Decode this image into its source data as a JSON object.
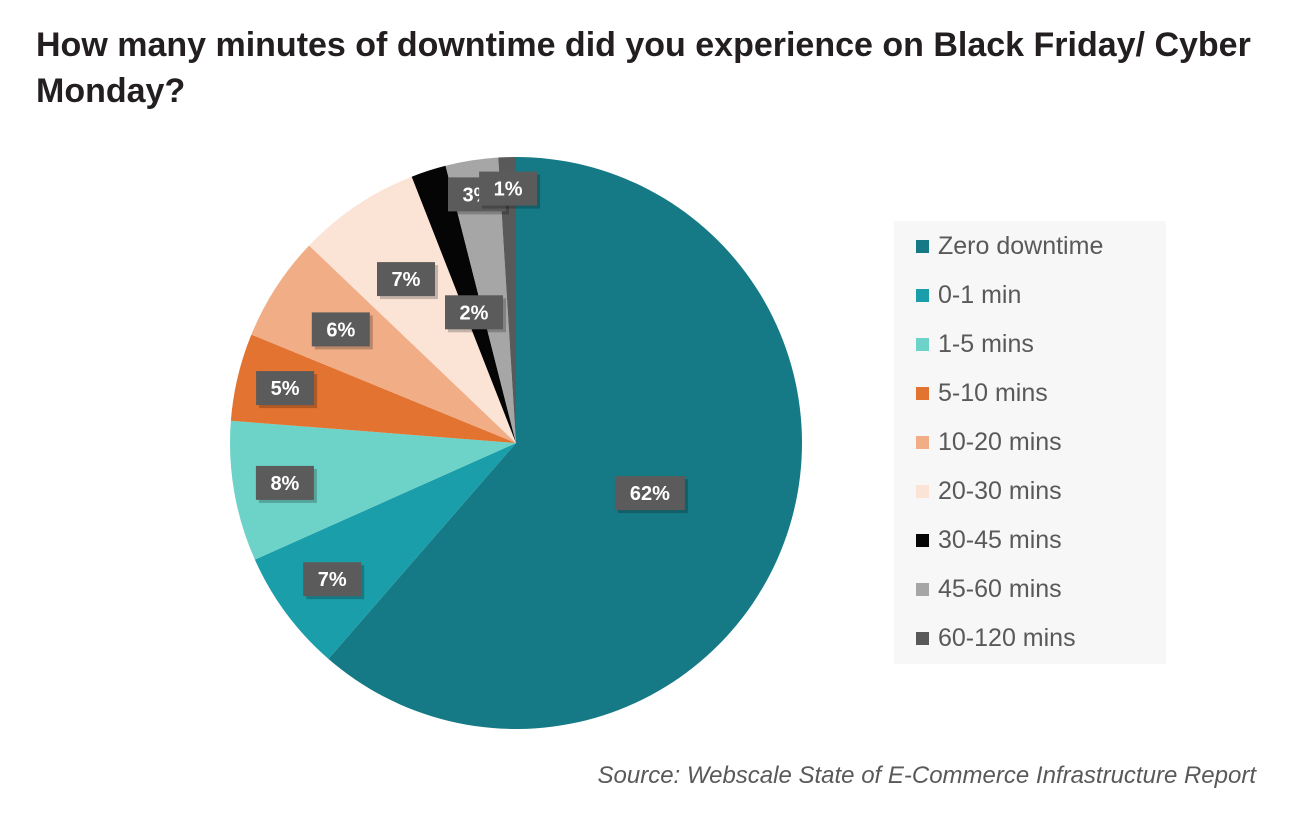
{
  "title": "How many minutes of downtime did you experience on Black Friday/ Cyber Monday?",
  "source": "Source: Webscale State of E-Commerce Infrastructure Report",
  "chart_data": {
    "type": "pie",
    "title": "How many minutes of downtime did you experience on Black Friday/ Cyber Monday?",
    "start": "12 o'clock",
    "direction": "clockwise",
    "legend_position": "right",
    "data_label_style": "dark-box",
    "slices": [
      {
        "label": "Zero downtime",
        "value": 62,
        "display": "62%",
        "color": "#167a86"
      },
      {
        "label": "0-1 min",
        "value": 7,
        "display": "7%",
        "color": "#1a9ea9"
      },
      {
        "label": "1-5 mins",
        "value": 8,
        "display": "8%",
        "color": "#6dd3c8"
      },
      {
        "label": "5-10 mins",
        "value": 5,
        "display": "5%",
        "color": "#e27330"
      },
      {
        "label": "10-20 mins",
        "value": 6,
        "display": "6%",
        "color": "#f0ad86"
      },
      {
        "label": "20-30 mins",
        "value": 7,
        "display": "7%",
        "color": "#fbe3d6"
      },
      {
        "label": "30-45 mins",
        "value": 2,
        "display": "2%",
        "color": "#050505"
      },
      {
        "label": "45-60 mins",
        "value": 3,
        "display": "3%",
        "color": "#a6a6a6"
      },
      {
        "label": "60-120 mins",
        "value": 1,
        "display": "1%",
        "color": "#595959"
      }
    ]
  }
}
